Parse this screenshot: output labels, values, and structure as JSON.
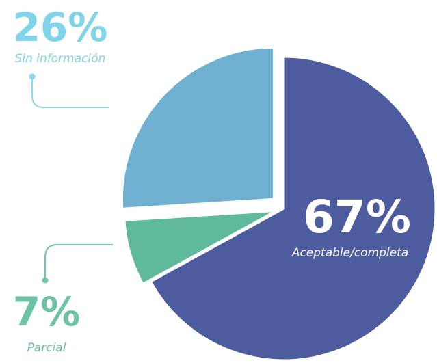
{
  "chart_data": {
    "type": "pie",
    "categories": [
      "Aceptable/completa",
      "Parcial",
      "Sin información"
    ],
    "values": [
      67,
      7,
      26
    ],
    "value_labels": [
      "67%",
      "7%",
      "26%"
    ],
    "colors": [
      "#4d5c9e",
      "#5fb99c",
      "#6fb0d0"
    ]
  }
}
